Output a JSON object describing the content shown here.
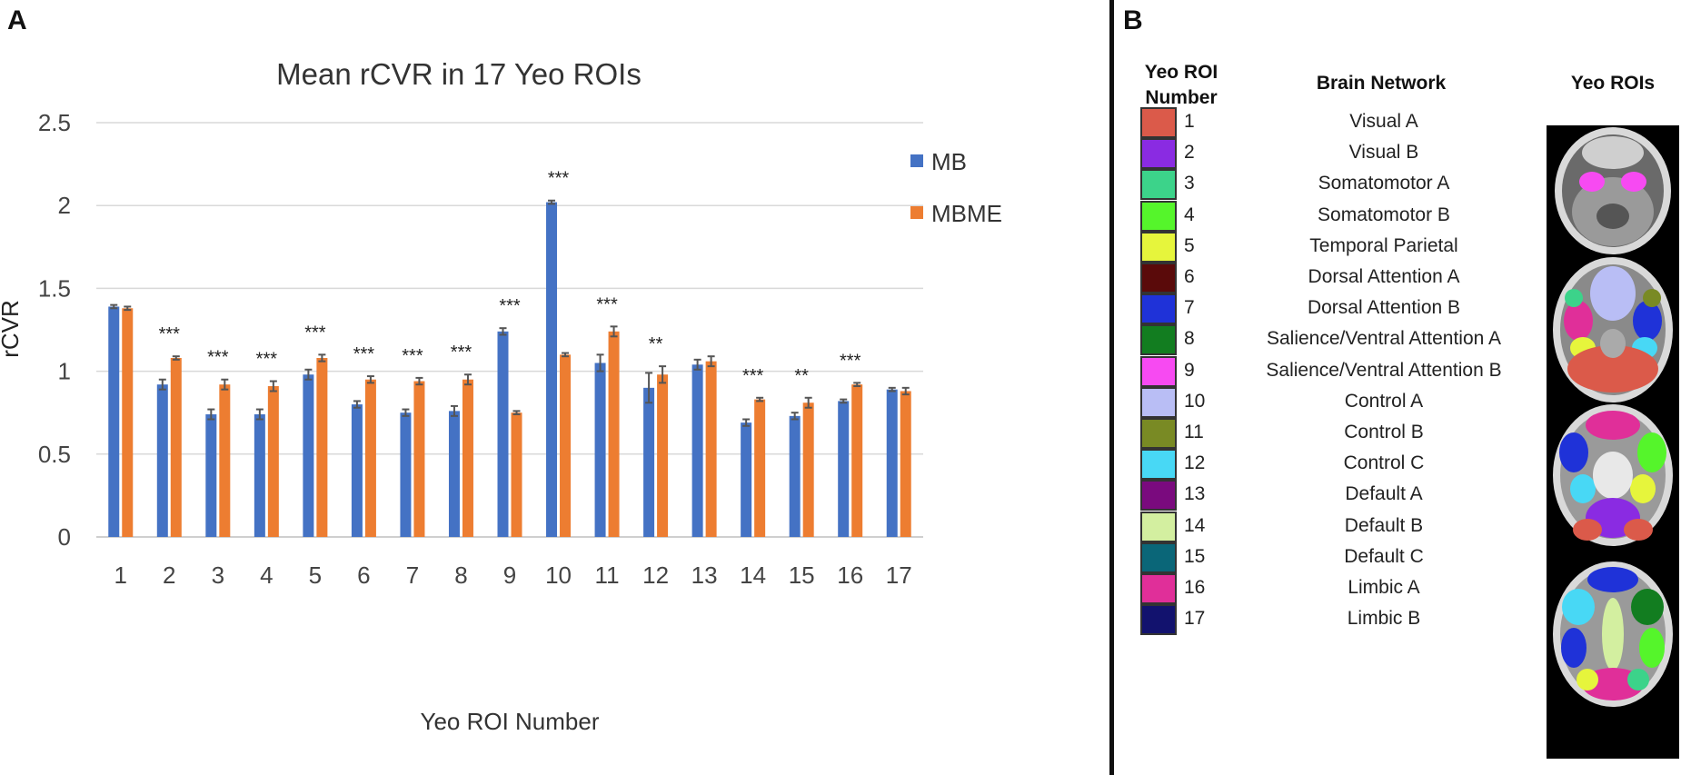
{
  "panel_a": {
    "letter": "A",
    "legend": [
      {
        "name": "MB",
        "color": "#4472C4"
      },
      {
        "name": "MBME",
        "color": "#ED7D31"
      }
    ]
  },
  "panel_b": {
    "letter": "B",
    "headers": {
      "roi_number": [
        "Yeo ROI",
        "Number"
      ],
      "brain_network": "Brain Network",
      "yeo_rois": "Yeo ROIs"
    },
    "rois": [
      {
        "number": "1",
        "network": "Visual A",
        "color": "#DB5A4A"
      },
      {
        "number": "2",
        "network": "Visual B",
        "color": "#8A2BE2"
      },
      {
        "number": "3",
        "network": "Somatomotor  A",
        "color": "#3CD38A"
      },
      {
        "number": "4",
        "network": "Somatomotor  B",
        "color": "#55F52B"
      },
      {
        "number": "5",
        "network": "Temporal Parietal",
        "color": "#E6F53C"
      },
      {
        "number": "6",
        "network": "Dorsal Attention A",
        "color": "#5A0A0A"
      },
      {
        "number": "7",
        "network": "Dorsal Attention B",
        "color": "#1F32D8"
      },
      {
        "number": "8",
        "network": "Salience/Ventral Attention A",
        "color": "#127D20"
      },
      {
        "number": "9",
        "network": "Salience/Ventral Attention B",
        "color": "#F74AF2"
      },
      {
        "number": "10",
        "network": "Control  A",
        "color": "#B9BEF5"
      },
      {
        "number": "11",
        "network": "Control  B",
        "color": "#798A24"
      },
      {
        "number": "12",
        "network": "Control  C",
        "color": "#48D8F5"
      },
      {
        "number": "13",
        "network": "Default A",
        "color": "#7A0A7E"
      },
      {
        "number": "14",
        "network": "Default B",
        "color": "#D3EFA0"
      },
      {
        "number": "15",
        "network": "Default C",
        "color": "#0A6678"
      },
      {
        "number": "16",
        "network": "Limbic A",
        "color": "#E02F99"
      },
      {
        "number": "17",
        "network": "Limbic B",
        "color": "#12126E"
      }
    ]
  },
  "chart_data": {
    "type": "bar",
    "title": "Mean rCVR in 17 Yeo ROIs",
    "xlabel": "Yeo  ROI Number",
    "ylabel": "rCVR",
    "ylim": [
      0,
      2.5
    ],
    "yticks": [
      0,
      0.5,
      1,
      1.5,
      2,
      2.5
    ],
    "ytick_labels": [
      "0",
      "0.5",
      "1",
      "1.5",
      "2",
      "2.5"
    ],
    "grid": true,
    "legend_position": "top-right",
    "categories": [
      "1",
      "2",
      "3",
      "4",
      "5",
      "6",
      "7",
      "8",
      "9",
      "10",
      "11",
      "12",
      "13",
      "14",
      "15",
      "16",
      "17"
    ],
    "series": [
      {
        "name": "MB",
        "color": "#4472C4",
        "values": [
          1.39,
          0.92,
          0.74,
          0.74,
          0.98,
          0.8,
          0.75,
          0.76,
          1.24,
          2.02,
          1.05,
          0.9,
          1.04,
          0.69,
          0.73,
          0.82,
          0.89
        ],
        "errors": [
          0.01,
          0.03,
          0.03,
          0.03,
          0.03,
          0.02,
          0.02,
          0.03,
          0.02,
          0.01,
          0.05,
          0.09,
          0.03,
          0.02,
          0.02,
          0.01,
          0.01
        ]
      },
      {
        "name": "MBME",
        "color": "#ED7D31",
        "values": [
          1.38,
          1.08,
          0.92,
          0.91,
          1.08,
          0.95,
          0.94,
          0.95,
          0.75,
          1.1,
          1.24,
          0.98,
          1.06,
          0.83,
          0.81,
          0.92,
          0.88
        ],
        "errors": [
          0.01,
          0.01,
          0.03,
          0.03,
          0.02,
          0.02,
          0.02,
          0.03,
          0.01,
          0.01,
          0.03,
          0.05,
          0.03,
          0.01,
          0.03,
          0.01,
          0.02
        ]
      }
    ],
    "annotations": [
      "",
      "***",
      "***",
      "***",
      "***",
      "***",
      "***",
      "***",
      "***",
      "***",
      "***",
      "**",
      "",
      "***",
      "**",
      "***",
      ""
    ]
  }
}
